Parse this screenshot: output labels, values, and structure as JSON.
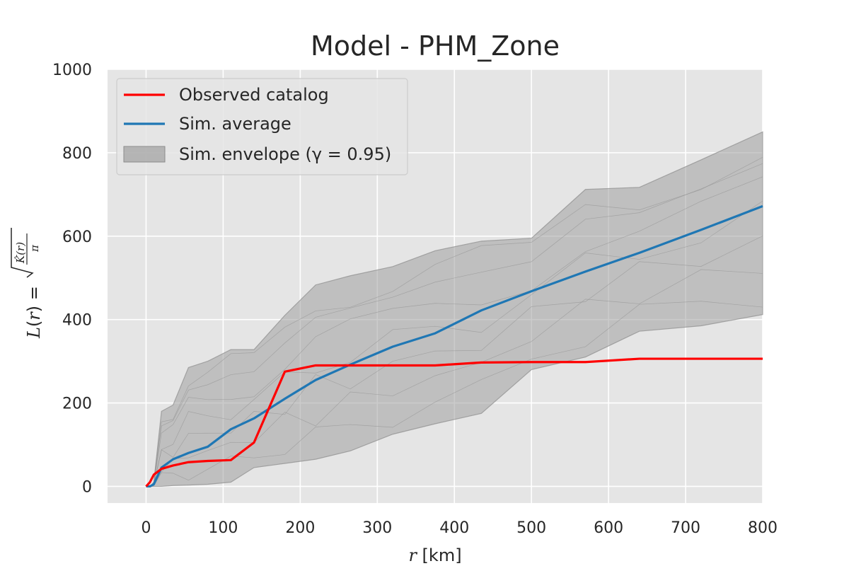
{
  "chart_data": {
    "type": "line",
    "title": "Model - PHM_Zone",
    "xlabel": "r  [km]",
    "ylabel": "L(r) = sqrt(K̂(r)/π)",
    "xlim": [
      -50,
      800
    ],
    "ylim": [
      -40,
      1000
    ],
    "xticks": [
      0,
      100,
      200,
      300,
      400,
      500,
      600,
      700,
      800
    ],
    "yticks": [
      0,
      200,
      400,
      600,
      800,
      1000
    ],
    "grid": true,
    "legend_position": "upper-left",
    "colors": {
      "background": "#e5e5e5",
      "grid": "#ffffff",
      "observed": "#ff0000",
      "average": "#1f77b4",
      "envelope": "#a0a0a0",
      "sims": "#909090"
    },
    "legend": [
      {
        "key": "observed",
        "label": "Observed catalog"
      },
      {
        "key": "average",
        "label": "Sim. average"
      },
      {
        "key": "envelope",
        "label": "Sim. envelope (γ = 0.95)"
      }
    ],
    "series": [
      {
        "name": "Observed catalog",
        "x": [
          0,
          5,
          10,
          20,
          35,
          55,
          80,
          110,
          140,
          160,
          180,
          220,
          260,
          320,
          375,
          435,
          500,
          570,
          640,
          720,
          800
        ],
        "y": [
          0,
          10,
          28,
          42,
          50,
          58,
          61,
          63,
          105,
          190,
          275,
          290,
          290,
          290,
          290,
          297,
          298,
          298,
          306,
          306,
          306
        ]
      },
      {
        "name": "Sim. average",
        "x": [
          0,
          5,
          10,
          20,
          35,
          55,
          80,
          110,
          140,
          180,
          220,
          265,
          320,
          375,
          435,
          500,
          570,
          640,
          720,
          800
        ],
        "y": [
          0,
          0,
          5,
          45,
          65,
          80,
          95,
          137,
          163,
          210,
          255,
          292,
          335,
          367,
          422,
          468,
          515,
          560,
          615,
          672
        ]
      },
      {
        "name": "Sim. envelope (γ = 0.95)",
        "x": [
          0,
          5,
          10,
          20,
          35,
          55,
          80,
          110,
          140,
          180,
          220,
          265,
          320,
          375,
          435,
          500,
          570,
          640,
          720,
          800
        ],
        "upper": [
          0,
          0,
          10,
          180,
          195,
          285,
          300,
          328,
          328,
          410,
          483,
          505,
          527,
          565,
          588,
          595,
          712,
          717,
          783,
          850
        ],
        "lower": [
          0,
          0,
          0,
          0,
          2,
          3,
          5,
          10,
          45,
          55,
          65,
          85,
          125,
          150,
          175,
          280,
          310,
          372,
          385,
          412
        ]
      }
    ]
  }
}
